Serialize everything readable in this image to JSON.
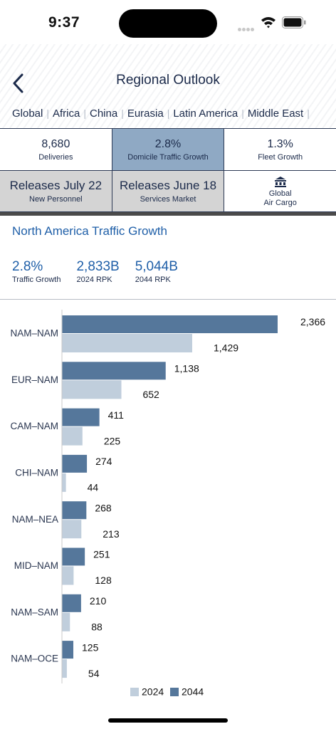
{
  "status_bar": {
    "time": "9:37"
  },
  "header": {
    "title": "Regional Outlook",
    "regions": [
      "Global",
      "Africa",
      "China",
      "Eurasia",
      "Latin America",
      "Middle East"
    ]
  },
  "metrics": {
    "row1": [
      {
        "value": "8,680",
        "label": "Deliveries"
      },
      {
        "value": "2.8%",
        "label": "Domicile Traffic Growth"
      },
      {
        "value": "1.3%",
        "label": "Fleet Growth"
      }
    ],
    "row2": [
      {
        "value": "Releases July 22",
        "label": "New Personnel"
      },
      {
        "value": "Releases June 18",
        "label": "Services Market"
      },
      {
        "line1": "Global",
        "line2": "Air Cargo",
        "icon": "cargo-icon"
      }
    ]
  },
  "traffic": {
    "title": "North America  Traffic Growth",
    "stats": [
      {
        "value": "2.8%",
        "label": "Traffic Growth"
      },
      {
        "value": "2,833B",
        "label": "2024 RPK"
      },
      {
        "value": "5,044B",
        "label": "2044 RPK"
      }
    ]
  },
  "colors": {
    "dark_bar": "#55779b",
    "light_bar": "#c0cedc",
    "accent": "#1f5fa8",
    "selected_cell": "#8fa9c4"
  },
  "chart_data": {
    "type": "bar",
    "orientation": "horizontal",
    "categories": [
      "NAM–NAM",
      "EUR–NAM",
      "CAM–NAM",
      "CHI–NAM",
      "NAM–NEA",
      "MID–NAM",
      "NAM–SAM",
      "NAM–OCE"
    ],
    "series": [
      {
        "name": "2044",
        "values": [
          2366,
          1138,
          411,
          274,
          268,
          251,
          210,
          125
        ]
      },
      {
        "name": "2024",
        "values": [
          1429,
          652,
          225,
          44,
          213,
          128,
          88,
          54
        ]
      }
    ],
    "xlim": [
      0,
      2366
    ],
    "legend": [
      "2024",
      "2044"
    ],
    "legend_position": "bottom"
  }
}
